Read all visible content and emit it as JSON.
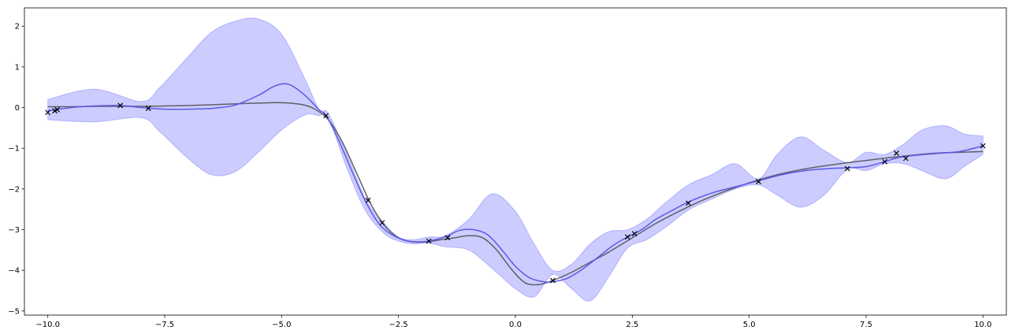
{
  "chart_data": {
    "type": "line",
    "title": "",
    "xlabel": "",
    "ylabel": "",
    "xlim": [
      -10.5,
      10.5
    ],
    "ylim": [
      -5.1,
      2.45
    ],
    "grid": false,
    "x_ticks": [
      -10.0,
      -7.5,
      -5.0,
      -2.5,
      0.0,
      2.5,
      5.0,
      7.5,
      10.0
    ],
    "x_tick_labels": [
      "−10.0",
      "−7.5",
      "−5.0",
      "−2.5",
      "0.0",
      "2.5",
      "5.0",
      "7.5",
      "10.0"
    ],
    "y_ticks": [
      -5,
      -4,
      -3,
      -2,
      -1,
      0,
      1,
      2
    ],
    "y_tick_labels": [
      "−5",
      "−4",
      "−3",
      "−2",
      "−1",
      "0",
      "1",
      "2"
    ],
    "colors": {
      "band": "#0000ff",
      "mean": "#5a5ae6",
      "true": "#5f5f6a",
      "points": "#000000"
    },
    "series": [
      {
        "kind": "band",
        "x": [
          -10.0,
          -9.0,
          -8.0,
          -7.6,
          -7.0,
          -6.5,
          -6.0,
          -5.5,
          -5.0,
          -4.5,
          -4.2,
          -4.0,
          -3.6,
          -3.2,
          -2.8,
          -2.5,
          -2.2,
          -1.85,
          -1.5,
          -1.0,
          -0.5,
          0.0,
          0.4,
          0.8,
          1.2,
          1.6,
          2.0,
          2.4,
          2.8,
          3.2,
          3.7,
          4.2,
          4.7,
          5.2,
          5.6,
          6.1,
          6.6,
          7.1,
          7.5,
          7.9,
          8.3,
          8.7,
          9.2,
          9.6,
          10.0
        ],
        "upper": [
          0.2,
          0.45,
          0.15,
          0.5,
          1.25,
          1.85,
          2.12,
          2.18,
          1.8,
          0.7,
          -0.05,
          -0.15,
          -1.15,
          -2.25,
          -2.85,
          -3.18,
          -3.25,
          -3.18,
          -3.15,
          -2.75,
          -2.12,
          -2.55,
          -3.35,
          -4.0,
          -3.85,
          -3.35,
          -3.05,
          -3.0,
          -2.75,
          -2.35,
          -1.9,
          -1.65,
          -1.38,
          -1.75,
          -1.15,
          -0.72,
          -1.05,
          -1.35,
          -1.1,
          -1.15,
          -0.9,
          -0.55,
          -0.45,
          -0.65,
          -0.7
        ],
        "lower": [
          -0.3,
          -0.35,
          -0.25,
          -0.6,
          -1.25,
          -1.65,
          -1.58,
          -1.1,
          -0.55,
          -0.18,
          -0.2,
          -0.25,
          -1.5,
          -2.55,
          -3.1,
          -3.28,
          -3.35,
          -3.33,
          -3.42,
          -3.5,
          -3.95,
          -4.45,
          -4.65,
          -4.1,
          -4.45,
          -4.75,
          -4.15,
          -3.45,
          -3.25,
          -2.95,
          -2.52,
          -2.25,
          -2.0,
          -1.9,
          -2.15,
          -2.45,
          -2.15,
          -1.52,
          -1.55,
          -1.38,
          -1.38,
          -1.55,
          -1.75,
          -1.45,
          -1.15
        ]
      },
      {
        "kind": "mean",
        "x": [
          -10.0,
          -9.5,
          -9.0,
          -8.45,
          -8.0,
          -7.5,
          -7.0,
          -6.5,
          -6.0,
          -5.5,
          -5.2,
          -5.0,
          -4.8,
          -4.5,
          -4.2,
          -4.05,
          -3.8,
          -3.5,
          -3.2,
          -2.9,
          -2.6,
          -2.3,
          -2.0,
          -1.85,
          -1.5,
          -1.2,
          -0.9,
          -0.6,
          -0.3,
          0.0,
          0.3,
          0.6,
          0.8,
          1.1,
          1.4,
          1.8,
          2.1,
          2.4,
          2.7,
          3.0,
          3.4,
          3.7,
          4.2,
          4.7,
          5.2,
          5.7,
          6.2,
          6.7,
          7.1,
          7.5,
          7.9,
          8.15,
          8.5,
          9.0,
          9.5,
          10.0
        ],
        "y": [
          -0.08,
          0.0,
          0.04,
          0.05,
          0.0,
          -0.04,
          -0.04,
          -0.02,
          0.06,
          0.3,
          0.5,
          0.58,
          0.55,
          0.3,
          -0.05,
          -0.2,
          -0.75,
          -1.55,
          -2.32,
          -2.88,
          -3.15,
          -3.28,
          -3.3,
          -3.28,
          -3.18,
          -3.02,
          -3.0,
          -3.12,
          -3.48,
          -3.9,
          -4.18,
          -4.28,
          -4.28,
          -4.2,
          -4.0,
          -3.65,
          -3.38,
          -3.18,
          -3.0,
          -2.75,
          -2.5,
          -2.32,
          -2.1,
          -1.95,
          -1.8,
          -1.65,
          -1.55,
          -1.5,
          -1.48,
          -1.45,
          -1.33,
          -1.24,
          -1.18,
          -1.13,
          -1.08,
          -0.94
        ]
      },
      {
        "kind": "true",
        "x": [
          -10.0,
          -9.5,
          -9.0,
          -8.5,
          -8.0,
          -7.5,
          -7.0,
          -6.5,
          -6.0,
          -5.5,
          -5.0,
          -4.6,
          -4.3,
          -4.0,
          -3.7,
          -3.4,
          -3.1,
          -2.8,
          -2.5,
          -2.2,
          -1.9,
          -1.6,
          -1.3,
          -1.0,
          -0.7,
          -0.4,
          -0.1,
          0.2,
          0.5,
          0.8,
          1.2,
          1.6,
          2.0,
          2.5,
          3.0,
          3.5,
          4.0,
          4.5,
          5.0,
          5.5,
          6.0,
          6.5,
          7.0,
          7.5,
          8.0,
          8.5,
          9.0,
          9.5,
          10.0
        ],
        "y": [
          0.02,
          0.02,
          0.03,
          0.03,
          0.03,
          0.04,
          0.05,
          0.07,
          0.09,
          0.11,
          0.12,
          0.08,
          -0.03,
          -0.3,
          -0.85,
          -1.6,
          -2.35,
          -2.9,
          -3.2,
          -3.3,
          -3.3,
          -3.25,
          -3.2,
          -3.15,
          -3.2,
          -3.5,
          -3.95,
          -4.3,
          -4.35,
          -4.25,
          -4.05,
          -3.8,
          -3.55,
          -3.2,
          -2.85,
          -2.55,
          -2.28,
          -2.05,
          -1.85,
          -1.68,
          -1.55,
          -1.45,
          -1.37,
          -1.3,
          -1.23,
          -1.17,
          -1.12,
          -1.1,
          -1.08
        ]
      },
      {
        "kind": "points",
        "x": [
          -10.0,
          -9.85,
          -9.8,
          -8.45,
          -7.85,
          -4.05,
          -3.15,
          -2.85,
          -1.85,
          -1.45,
          0.8,
          2.4,
          2.55,
          3.7,
          5.2,
          7.1,
          7.9,
          8.15,
          8.35,
          10.0
        ],
        "y": [
          -0.12,
          -0.08,
          -0.05,
          0.05,
          -0.02,
          -0.2,
          -2.28,
          -2.83,
          -3.28,
          -3.2,
          -4.25,
          -3.18,
          -3.1,
          -2.35,
          -1.82,
          -1.5,
          -1.33,
          -1.12,
          -1.25,
          -0.94
        ]
      }
    ]
  }
}
